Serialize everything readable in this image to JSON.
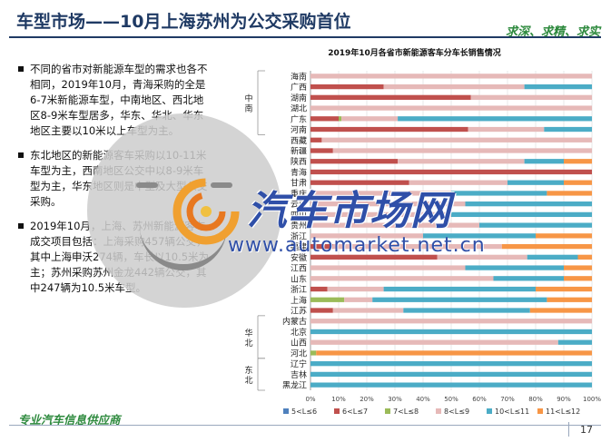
{
  "slide": {
    "title": "车型市场——10月上海苏州为公交采购首位",
    "slogan": "求深、求精、求实",
    "footer": "专业汽车信息供应商",
    "page_number": "17"
  },
  "bullets": [
    "不同的省市对新能源车型的需求也各不相同，2019年10月，青海采购的全是6-7米新能源车型，中南地区、西北地区8-9米车型居多，华东、华北、华东地区主要以10米以上车型为主。",
    "东北地区的新能源客车采购以10-11米车型为主，西南地区公交中以8-9米车型为主，华东地区则是中型及大型公交采购。",
    "2019年10月，上海、苏州新能源客车成交项目包括：上海采购457辆公交，其中上海申沃274辆，车长以10.5米为主；苏州采购苏州金龙442辆公交，其中247辆为10.5米车型。"
  ],
  "watermark": {
    "brand": "汽车市场网",
    "url": "www.automarket.net.cn"
  },
  "chart_data": {
    "type": "bar",
    "orientation": "horizontal",
    "stacked": "percent",
    "title": "2019年10月各省市新能源客车分车长销售情况",
    "categories": [
      "海南",
      "广西",
      "湖南",
      "湖北",
      "广东",
      "河南",
      "西藏",
      "新疆",
      "陕西",
      "青海",
      "甘肃",
      "重庆",
      "云南",
      "四川",
      "贵州",
      "浙江",
      "福建",
      "安徽",
      "江西",
      "山东",
      "浙江",
      "上海",
      "江苏",
      "内蒙古",
      "北京",
      "山西",
      "河北",
      "辽宁",
      "吉林",
      "黑龙江"
    ],
    "region_groups": [
      {
        "label": "中南",
        "from": 0,
        "to": 5
      },
      {
        "label": "华北",
        "from": 23,
        "to": 26
      },
      {
        "label": "东北",
        "from": 27,
        "to": 29
      }
    ],
    "series": [
      {
        "name": "5<L≤6",
        "color": "#4f81bd",
        "values": [
          0,
          0,
          0,
          0,
          0,
          0,
          0,
          0,
          0,
          0,
          0,
          0,
          0,
          0,
          0,
          0,
          0,
          0,
          0,
          0,
          0,
          0,
          0,
          0,
          0,
          0,
          0,
          0,
          0,
          0
        ]
      },
      {
        "name": "6<L≤7",
        "color": "#c0504d",
        "values": [
          0,
          26,
          57,
          0,
          10,
          56,
          4,
          8,
          31,
          100,
          35,
          0,
          0,
          0,
          0,
          0,
          8,
          45,
          0,
          0,
          6,
          0,
          8,
          0,
          0,
          0,
          0,
          0,
          0,
          0
        ]
      },
      {
        "name": "7<L≤8",
        "color": "#9bbb59",
        "values": [
          0,
          0,
          0,
          0,
          1,
          0,
          0,
          0,
          0,
          0,
          0,
          0,
          0,
          0,
          0,
          0,
          0,
          0,
          0,
          0,
          0,
          12,
          0,
          0,
          0,
          0,
          2,
          0,
          0,
          0
        ]
      },
      {
        "name": "8<L≤9",
        "color": "#e6b9b8",
        "values": [
          100,
          50,
          43,
          100,
          20,
          27,
          96,
          92,
          45,
          0,
          35,
          50,
          55,
          50,
          60,
          40,
          60,
          32,
          55,
          65,
          20,
          10,
          25,
          100,
          0,
          88,
          0,
          0,
          0,
          0
        ]
      },
      {
        "name": "10<L≤11",
        "color": "#4bacc6",
        "values": [
          0,
          24,
          0,
          0,
          69,
          17,
          0,
          0,
          14,
          0,
          20,
          34,
          45,
          50,
          40,
          40,
          0,
          18,
          35,
          25,
          54,
          62,
          45,
          0,
          100,
          12,
          0,
          100,
          100,
          100
        ]
      },
      {
        "name": "11<L≤12",
        "color": "#f79646",
        "values": [
          0,
          0,
          0,
          0,
          0,
          0,
          0,
          0,
          10,
          0,
          10,
          16,
          0,
          0,
          0,
          20,
          32,
          5,
          10,
          10,
          20,
          16,
          22,
          0,
          0,
          0,
          98,
          0,
          0,
          0
        ]
      }
    ],
    "x_ticks": [
      "0%",
      "10%",
      "20%",
      "30%",
      "40%",
      "50%",
      "60%",
      "70%",
      "80%",
      "90%",
      "100%"
    ],
    "xlim": [
      0,
      100
    ],
    "legend_position": "bottom",
    "grid": true
  }
}
